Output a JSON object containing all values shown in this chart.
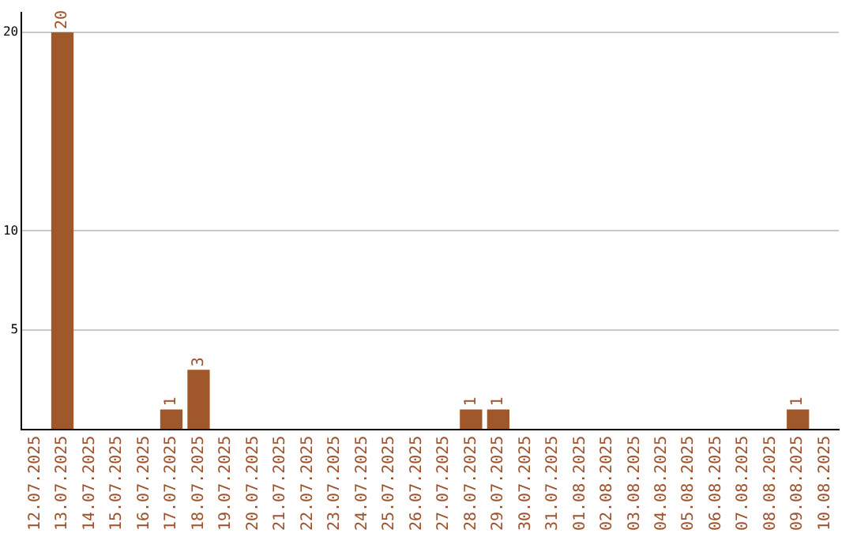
{
  "chart_data": {
    "type": "bar",
    "categories": [
      "12.07.2025",
      "13.07.2025",
      "14.07.2025",
      "15.07.2025",
      "16.07.2025",
      "17.07.2025",
      "18.07.2025",
      "19.07.2025",
      "20.07.2025",
      "21.07.2025",
      "22.07.2025",
      "23.07.2025",
      "24.07.2025",
      "25.07.2025",
      "26.07.2025",
      "27.07.2025",
      "28.07.2025",
      "29.07.2025",
      "30.07.2025",
      "31.07.2025",
      "01.08.2025",
      "02.08.2025",
      "03.08.2025",
      "04.08.2025",
      "05.08.2025",
      "06.08.2025",
      "07.08.2025",
      "08.08.2025",
      "09.08.2025",
      "10.08.2025"
    ],
    "values": [
      0,
      20,
      0,
      0,
      0,
      1,
      3,
      0,
      0,
      0,
      0,
      0,
      0,
      0,
      0,
      0,
      1,
      1,
      0,
      0,
      0,
      0,
      0,
      0,
      0,
      0,
      0,
      0,
      1,
      0
    ],
    "value_labels": [
      null,
      "20",
      null,
      null,
      null,
      "1",
      "3",
      null,
      null,
      null,
      null,
      null,
      null,
      null,
      null,
      null,
      "1",
      "1",
      null,
      null,
      null,
      null,
      null,
      null,
      null,
      null,
      null,
      null,
      "1",
      null
    ],
    "color": "#a0582a",
    "ylim": [
      0,
      21
    ],
    "yticks": [
      5,
      10,
      20
    ],
    "grid": "y",
    "legend": false
  }
}
